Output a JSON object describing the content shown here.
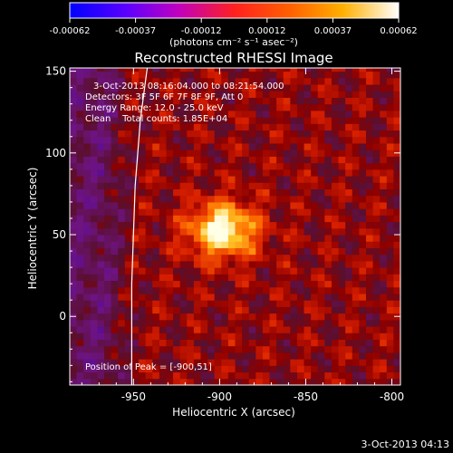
{
  "chart_data": {
    "type": "heatmap",
    "title": "Reconstructed RHESSI Image",
    "colorbar": {
      "ticks": [
        "-0.00062",
        "-0.00037",
        "-0.00012",
        "0.00012",
        "0.00037",
        "0.00062"
      ],
      "unit_text": "(photons cm⁻² s⁻¹ asec⁻²)",
      "range": [
        -0.00062,
        0.00062
      ]
    },
    "xlabel": "Heliocentric X (arcsec)",
    "ylabel": "Heliocentric Y (arcsec)",
    "xlim": [
      -987,
      -795
    ],
    "ylim": [
      -42,
      152
    ],
    "xticks": [
      -950,
      -900,
      -850,
      -800
    ],
    "yticks": [
      0,
      50,
      100,
      150
    ],
    "peak": {
      "x": -900,
      "y": 51,
      "value": 0.00062
    },
    "info_lines": [
      "3-Oct-2013 08:16:04.000 to 08:21:54.000",
      "Detectors: 3F 5F 6F 7F 8F 9F, Att 0",
      "Energy Range: 12.0 - 25.0 keV",
      "Clean    Total counts: 1.85E+04"
    ],
    "peak_label": "Position of Peak = [-900,51]",
    "limb_line": [
      [
        -951,
        -42
      ],
      [
        -951,
        20
      ],
      [
        -949,
        80
      ],
      [
        -946,
        120
      ],
      [
        -942,
        152
      ]
    ],
    "grid": false
  },
  "footer_date": "3-Oct-2013 04:13"
}
